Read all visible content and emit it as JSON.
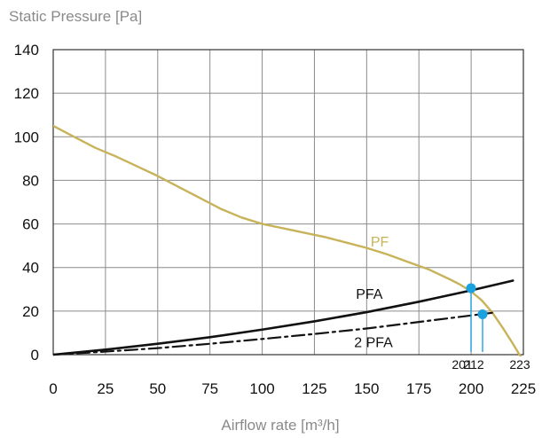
{
  "chart_data": {
    "type": "line",
    "ylabel": "Static Pressure [Pa]",
    "xlabel": "Airflow rate [m³/h]",
    "xlim": [
      0,
      225
    ],
    "ylim": [
      0,
      140
    ],
    "x_ticks": [
      "0",
      "25",
      "50",
      "75",
      "100",
      "125",
      "150",
      "175",
      "200",
      "225"
    ],
    "y_ticks": [
      "0",
      "20",
      "40",
      "60",
      "80",
      "100",
      "120",
      "140"
    ],
    "grid": true,
    "colors": {
      "pf": "#c8b35a",
      "system": "#111111",
      "point": "#1aa1e0"
    },
    "series": [
      {
        "name": "PF",
        "style": "solid",
        "x": [
          0,
          10,
          20,
          30,
          40,
          50,
          60,
          70,
          80,
          90,
          100,
          110,
          120,
          130,
          140,
          150,
          160,
          170,
          180,
          190,
          195,
          200,
          205,
          210,
          215,
          220,
          225
        ],
        "y": [
          105,
          100,
          95,
          91,
          86.5,
          82,
          77,
          72,
          67,
          63,
          60,
          58,
          56,
          54,
          51.5,
          49,
          46,
          42.5,
          39,
          34.5,
          32,
          29,
          25,
          19.5,
          12.5,
          5,
          -3
        ]
      },
      {
        "name": "PFA",
        "style": "solid",
        "x": [
          0,
          25,
          50,
          75,
          100,
          125,
          150,
          175,
          200,
          220
        ],
        "y": [
          0,
          2.3,
          5,
          8,
          11.5,
          15.3,
          19.5,
          24.3,
          29.5,
          34
        ]
      },
      {
        "name": "2 PFA",
        "style": "dashdot",
        "x": [
          0,
          25,
          50,
          75,
          100,
          125,
          150,
          175,
          200,
          210
        ],
        "y": [
          0,
          1.4,
          3,
          5,
          7.2,
          9.5,
          12,
          15,
          18,
          19.2
        ]
      }
    ],
    "operating_points": [
      {
        "x": 201,
        "y": 30.5,
        "label": "201"
      },
      {
        "x": 212,
        "y": 18.5,
        "label": "212"
      }
    ],
    "annotations": [
      {
        "text": "PF",
        "x": 155,
        "y": 52
      },
      {
        "text": "PFA",
        "x": 150,
        "y": 28
      },
      {
        "text": "2 PFA",
        "x": 152,
        "y": 6
      }
    ],
    "end_label": {
      "text": "223",
      "x": 223
    }
  }
}
